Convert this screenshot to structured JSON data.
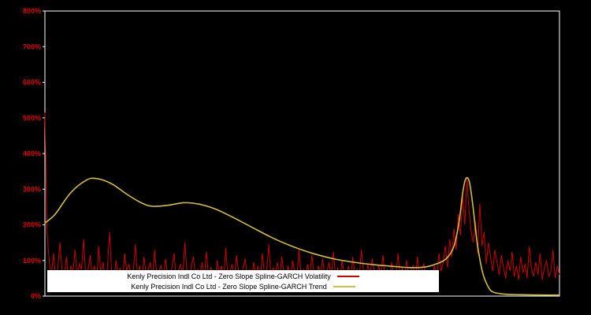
{
  "chart_data": {
    "type": "line",
    "title": "",
    "xlabel": "",
    "ylabel": "",
    "ylim": [
      0,
      800
    ],
    "y_ticks": [
      0,
      100,
      200,
      300,
      400,
      500,
      600,
      700,
      800
    ],
    "y_tick_labels": [
      "0%",
      "100%",
      "200%",
      "300%",
      "400%",
      "500%",
      "600%",
      "700%",
      "800%"
    ],
    "grid": false,
    "legend_position": "bottom-center",
    "colors": {
      "background": "#000000",
      "frame": "#ffffff",
      "tick_label": "#e00000"
    },
    "series": [
      {
        "name": "Kenly Precision Indl Co Ltd - Zero Slope Spline-GARCH Volatility",
        "color": "#cd0000",
        "style": "noisy",
        "unit": "%",
        "values": [
          515,
          180,
          95,
          60,
          120,
          45,
          80,
          150,
          70,
          55,
          110,
          40,
          85,
          65,
          130,
          50,
          90,
          75,
          160,
          45,
          70,
          115,
          55,
          85,
          40,
          140,
          60,
          95,
          50,
          75,
          180,
          65,
          45,
          100,
          55,
          80,
          35,
          120,
          70,
          90,
          50,
          65,
          145,
          55,
          85,
          40,
          110,
          60,
          75,
          95,
          45,
          130,
          55,
          70,
          85,
          40,
          105,
          60,
          50,
          80,
          120,
          45,
          70,
          90,
          55,
          150,
          65,
          40,
          85,
          110,
          50,
          75,
          60,
          95,
          45,
          125,
          55,
          80,
          70,
          40,
          100,
          60,
          85,
          45,
          135,
          55,
          70,
          90,
          50,
          115,
          65,
          40,
          80,
          105,
          55,
          75,
          45,
          95,
          60,
          85,
          40,
          120,
          55,
          70,
          145,
          50,
          80,
          60,
          95,
          45,
          110,
          65,
          55,
          85,
          40,
          100,
          70,
          50,
          130,
          60,
          75,
          45,
          90,
          55,
          115,
          65,
          40,
          85,
          60,
          105,
          50,
          70,
          95,
          45,
          125,
          55,
          80,
          40,
          100,
          65,
          55,
          85,
          45,
          110,
          60,
          75,
          50,
          130,
          65,
          40,
          90,
          55,
          105,
          70,
          45,
          85,
          60,
          115,
          50,
          75,
          40,
          95,
          65,
          55,
          120,
          50,
          80,
          45,
          100,
          60,
          70,
          85,
          40,
          110,
          55,
          75,
          90,
          50,
          65,
          45,
          60,
          85,
          50,
          120,
          70,
          95,
          140,
          80,
          160,
          110,
          190,
          130,
          230,
          170,
          280,
          200,
          330,
          240,
          180,
          150,
          210,
          120,
          260,
          140,
          180,
          90,
          150,
          110,
          70,
          130,
          95,
          60,
          115,
          80,
          50,
          100,
          70,
          125,
          55,
          85,
          45,
          110,
          65,
          90,
          50,
          140,
          75,
          55,
          95,
          60,
          120,
          45,
          80,
          100,
          55,
          70,
          130,
          50,
          85,
          60
        ]
      },
      {
        "name": "Kenly Precision Indl Co Ltd - Zero Slope Spline-GARCH Trend",
        "color": "#d1bd3f",
        "style": "smooth",
        "unit": "%",
        "points": [
          [
            0.0,
            205
          ],
          [
            0.02,
            230
          ],
          [
            0.05,
            290
          ],
          [
            0.08,
            325
          ],
          [
            0.1,
            330
          ],
          [
            0.13,
            315
          ],
          [
            0.16,
            285
          ],
          [
            0.19,
            260
          ],
          [
            0.21,
            252
          ],
          [
            0.24,
            255
          ],
          [
            0.27,
            262
          ],
          [
            0.3,
            258
          ],
          [
            0.33,
            245
          ],
          [
            0.36,
            225
          ],
          [
            0.4,
            195
          ],
          [
            0.44,
            165
          ],
          [
            0.48,
            140
          ],
          [
            0.52,
            120
          ],
          [
            0.56,
            105
          ],
          [
            0.6,
            95
          ],
          [
            0.64,
            88
          ],
          [
            0.68,
            83
          ],
          [
            0.71,
            80
          ],
          [
            0.74,
            82
          ],
          [
            0.76,
            90
          ],
          [
            0.78,
            105
          ],
          [
            0.795,
            140
          ],
          [
            0.805,
            210
          ],
          [
            0.812,
            290
          ],
          [
            0.818,
            330
          ],
          [
            0.825,
            320
          ],
          [
            0.832,
            250
          ],
          [
            0.84,
            150
          ],
          [
            0.85,
            70
          ],
          [
            0.86,
            30
          ],
          [
            0.87,
            12
          ],
          [
            0.89,
            6
          ],
          [
            0.92,
            4
          ],
          [
            0.96,
            3
          ],
          [
            1.0,
            3
          ]
        ]
      }
    ]
  },
  "legend": {
    "items": [
      {
        "label": "Kenly Precision Indl Co Ltd - Zero Slope Spline-GARCH Volatility"
      },
      {
        "label": "Kenly Precision Indl Co Ltd - Zero Slope Spline-GARCH Trend"
      }
    ]
  }
}
